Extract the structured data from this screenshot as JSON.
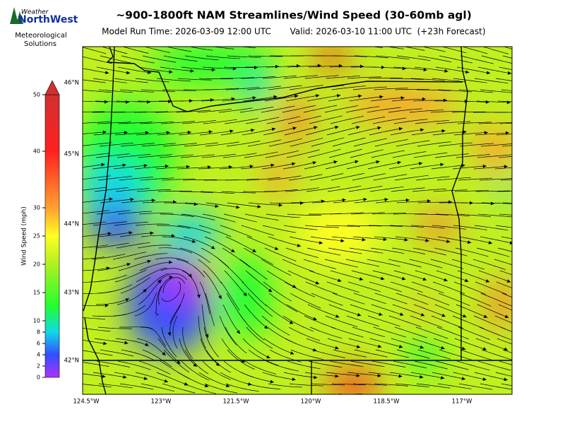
{
  "header": {
    "logo": {
      "brand_top": "Weather",
      "brand_main": "NorthWest",
      "tagline": [
        "Meteorological",
        "Solutions"
      ]
    },
    "title": "~900-1800ft NAM Streamlines/Wind Speed (30-60mb agl)",
    "model_run": "Model Run Time: 2026-03-09 12:00 UTC",
    "valid": "Valid: 2026-03-10 11:00 UTC  (+23h Forecast)"
  },
  "colorbar": {
    "label": "Wind Speed (mph)",
    "lim": [
      0,
      50
    ],
    "ticks": [
      0,
      2,
      4,
      6,
      8,
      10,
      15,
      20,
      25,
      30,
      40,
      50
    ]
  },
  "map": {
    "lat_labels": [
      "46°N",
      "45°N",
      "44°N",
      "43°N",
      "42°N"
    ],
    "lon_labels": [
      "124.5°W",
      "123°W",
      "121.5°W",
      "120°W",
      "118.5°W",
      "117°W"
    ]
  }
}
